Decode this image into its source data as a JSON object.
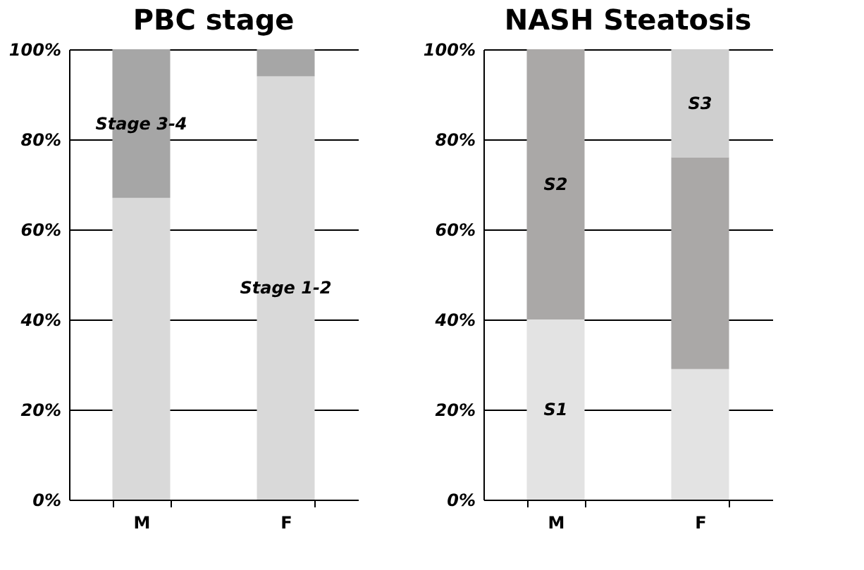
{
  "chart_data": [
    {
      "type": "bar",
      "title": "PBC stage",
      "categories": [
        "M",
        "F"
      ],
      "stacked": true,
      "series": [
        {
          "name": "Stage 1-2",
          "color": "#d9d9d9",
          "values": [
            67,
            94
          ]
        },
        {
          "name": "Stage 3-4",
          "color": "#a6a6a6",
          "values": [
            33,
            6
          ]
        }
      ],
      "ylim": [
        0,
        100
      ],
      "yticks": [
        {
          "value": 0,
          "label": "0%"
        },
        {
          "value": 20,
          "label": "20%"
        },
        {
          "value": 40,
          "label": "40%"
        },
        {
          "value": 60,
          "label": "60%"
        },
        {
          "value": 80,
          "label": "80%"
        },
        {
          "value": 100,
          "label": "100%"
        }
      ],
      "grid": "y",
      "legend": false
    },
    {
      "type": "bar",
      "title": "NASH Steatosis",
      "categories": [
        "M",
        "F"
      ],
      "stacked": true,
      "series": [
        {
          "name": "S1",
          "color": "#e3e3e3",
          "values": [
            40,
            29
          ]
        },
        {
          "name": "S2",
          "color": "#aaa8a7",
          "values": [
            60,
            47
          ]
        },
        {
          "name": "S3",
          "color": "#cfcfcf",
          "values": [
            null,
            24
          ]
        }
      ],
      "ylim": [
        0,
        100
      ],
      "yticks": [
        {
          "value": 0,
          "label": "0%"
        },
        {
          "value": 20,
          "label": "20%"
        },
        {
          "value": 40,
          "label": "40%"
        },
        {
          "value": 60,
          "label": "60%"
        },
        {
          "value": 80,
          "label": "80%"
        },
        {
          "value": 100,
          "label": "100%"
        }
      ],
      "grid": "y",
      "legend": false
    }
  ]
}
